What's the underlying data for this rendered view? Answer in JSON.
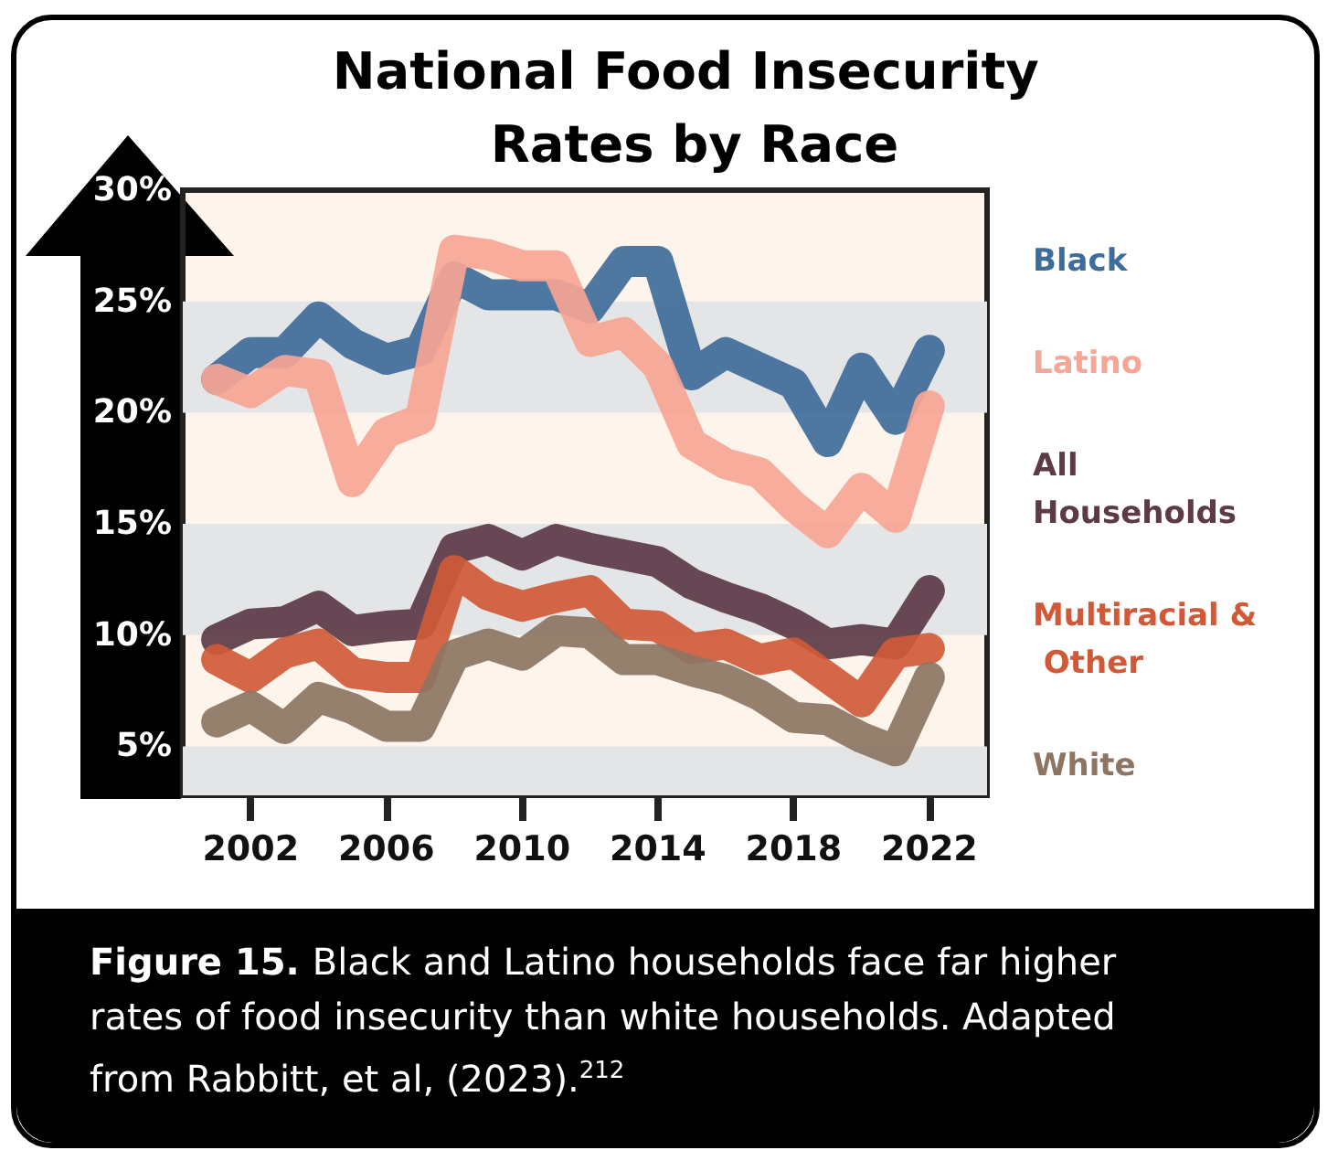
{
  "chart_data": {
    "type": "line",
    "title": "National Food Insecurity Rates by Race",
    "x": [
      2001,
      2002,
      2003,
      2004,
      2005,
      2006,
      2007,
      2008,
      2009,
      2010,
      2011,
      2012,
      2013,
      2014,
      2015,
      2016,
      2017,
      2018,
      2019,
      2020,
      2021,
      2022
    ],
    "series": [
      {
        "name": "Black",
        "color": "#3f6d99",
        "values": [
          21.5,
          22.7,
          22.7,
          24.3,
          23.1,
          22.4,
          22.8,
          26.1,
          25.3,
          25.3,
          25.3,
          24.7,
          26.8,
          26.8,
          21.7,
          22.7,
          22.0,
          21.3,
          18.7,
          22.0,
          19.7,
          22.8
        ]
      },
      {
        "name": "Latino",
        "color": "#f7a594",
        "values": [
          21.5,
          20.9,
          21.9,
          21.7,
          16.9,
          19.1,
          19.7,
          27.3,
          27.1,
          26.6,
          26.6,
          23.2,
          23.6,
          22.1,
          18.6,
          17.7,
          17.3,
          15.8,
          14.6,
          16.6,
          15.3,
          20.3
        ]
      },
      {
        "name": "All Households",
        "color": "#5c3a46",
        "values": [
          9.8,
          10.5,
          10.6,
          11.3,
          10.2,
          10.4,
          10.5,
          13.9,
          14.3,
          13.6,
          14.3,
          13.9,
          13.6,
          13.3,
          12.3,
          11.7,
          11.2,
          10.5,
          9.6,
          9.8,
          9.6,
          12.0
        ]
      },
      {
        "name": "Multiracial & Other",
        "color": "#d05a38",
        "values": [
          8.9,
          8.1,
          9.2,
          9.6,
          8.3,
          8.1,
          8.1,
          12.9,
          11.8,
          11.3,
          11.7,
          12.0,
          10.5,
          10.4,
          9.4,
          9.6,
          8.9,
          9.2,
          8.1,
          7.0,
          9.2,
          9.4
        ]
      },
      {
        "name": "White",
        "color": "#8c7563",
        "values": [
          6.1,
          6.8,
          5.8,
          7.2,
          6.7,
          5.9,
          5.9,
          9.1,
          9.6,
          9.1,
          10.2,
          10.1,
          8.9,
          8.9,
          8.4,
          8.0,
          7.3,
          6.3,
          6.2,
          5.4,
          4.8,
          8.1
        ]
      }
    ],
    "xlim": [
      2000,
      2023.7
    ],
    "xticks": [
      2002,
      2006,
      2010,
      2014,
      2018,
      2022
    ],
    "ylim": [
      2.8,
      30
    ],
    "yticks": [
      {
        "value": 5,
        "label": "5%"
      },
      {
        "value": 10,
        "label": "10%"
      },
      {
        "value": 15,
        "label": "15%"
      },
      {
        "value": 20,
        "label": "20%"
      },
      {
        "value": 25,
        "label": "25%"
      },
      {
        "value": 30,
        "label": "30%"
      }
    ],
    "bands": [
      {
        "axis": "y",
        "from": 2.8,
        "to": 5,
        "color": "#e4e5e7"
      },
      {
        "axis": "y",
        "from": 10,
        "to": 15,
        "color": "#e4e5e7"
      },
      {
        "axis": "y",
        "from": 20,
        "to": 25,
        "color": "#e4e5e7"
      }
    ],
    "legend": "right",
    "marker": "none",
    "line_style": "solid",
    "annotations": [
      "Figure 15.",
      "Black and Latino households face far higher rates of food insecurity than white households. Adapted from Rabbitt, et al, (2023).$^{212}$"
    ]
  }
}
